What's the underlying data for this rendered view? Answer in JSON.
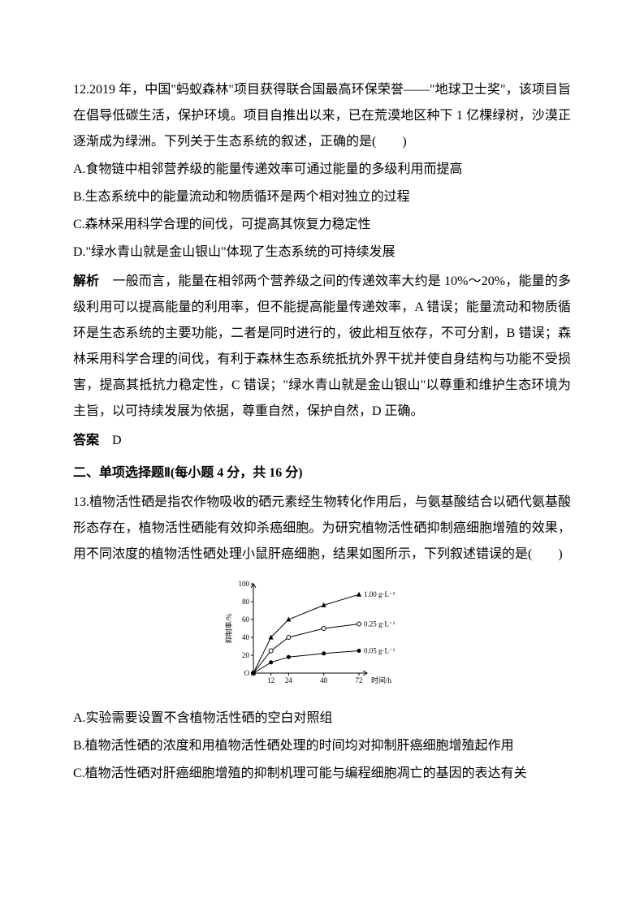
{
  "q12": {
    "stem": "12.2019 年，中国\"蚂蚁森林\"项目获得联合国最高环保荣誉——\"地球卫士奖\"，该项目旨在倡导低碳生活，保护环境。项目自推出以来，已在荒漠地区种下 1 亿棵绿树，沙漠正逐渐成为绿洲。下列关于生态系统的叙述，正确的是(　　)",
    "optA": "A.食物链中相邻营养级的能量传递效率可通过能量的多级利用而提高",
    "optB": "B.生态系统中的能量流动和物质循环是两个相对独立的过程",
    "optC": "C.森林采用科学合理的间伐，可提高其恢复力稳定性",
    "optD": "D.\"绿水青山就是金山银山\"体现了生态系统的可持续发展",
    "explanationLabel": "解析",
    "explanation": "　一般而言，能量在相邻两个营养级之间的传递效率大约是 10%～20%，能量的多级利用可以提高能量的利用率，但不能提高能量传递效率，A 错误；能量流动和物质循环是生态系统的主要功能，二者是同时进行的，彼此相互依存，不可分割，B 错误；森林采用科学合理的间伐，有利于森林生态系统抵抗外界干扰并使自身结构与功能不受损害，提高其抵抗力稳定性，C 错误；\"绿水青山就是金山银山\"以尊重和维护生态环境为主旨，以可持续发展为依据，尊重自然，保护自然，D 正确。",
    "answerLabel": "答案",
    "answer": "D"
  },
  "section2": {
    "header": "二、单项选择题Ⅱ(每小题 4 分，共 16 分)"
  },
  "q13": {
    "stem": "13.植物活性硒是指农作物吸收的硒元素经生物转化作用后，与氨基酸结合以硒代氨基酸形态存在，植物活性硒能有效抑杀癌细胞。为研究植物活性硒抑制癌细胞增殖的效果，用不同浓度的植物活性硒处理小鼠肝癌细胞，结果如图所示，下列叙述错误的是(　　)",
    "optA": "A.实验需要设置不含植物活性硒的空白对照组",
    "optB": "B.植物活性硒的浓度和用植物活性硒处理的时间均对抑制肝癌细胞增殖起作用",
    "optC": "C.植物活性硒对肝癌细胞增殖的抑制机理可能与编程细胞凋亡的基因的表达有关"
  },
  "chart": {
    "type": "line",
    "ylabel": "抑制率/%",
    "xlabel": "时间/h",
    "ylim": [
      0,
      100
    ],
    "yticks": [
      0,
      20,
      40,
      60,
      80,
      100
    ],
    "xticks": [
      0,
      12,
      24,
      48,
      72
    ],
    "background_color": "#ffffff",
    "axis_color": "#000000",
    "font_size": 9,
    "series": [
      {
        "label": "1.00 g·L⁻¹",
        "marker": "triangle-filled",
        "color": "#000000",
        "line_width": 1,
        "points": [
          [
            0,
            0
          ],
          [
            12,
            40
          ],
          [
            24,
            60
          ],
          [
            48,
            76
          ],
          [
            72,
            88
          ]
        ]
      },
      {
        "label": "0.25 g·L⁻¹",
        "marker": "circle-open",
        "color": "#000000",
        "line_width": 1,
        "points": [
          [
            0,
            0
          ],
          [
            12,
            25
          ],
          [
            24,
            40
          ],
          [
            48,
            50
          ],
          [
            72,
            55
          ]
        ]
      },
      {
        "label": "0.05 g·L⁻¹",
        "marker": "circle-filled",
        "color": "#000000",
        "line_width": 1,
        "points": [
          [
            0,
            0
          ],
          [
            12,
            12
          ],
          [
            24,
            18
          ],
          [
            48,
            22
          ],
          [
            72,
            25
          ]
        ]
      }
    ]
  }
}
